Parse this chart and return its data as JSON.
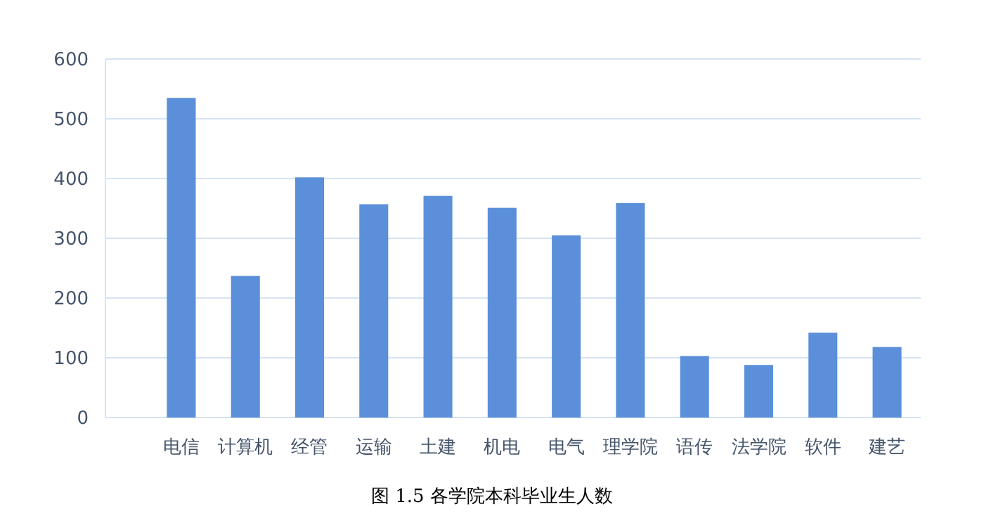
{
  "chart_data": {
    "type": "bar",
    "categories": [
      "电信",
      "计算机",
      "经管",
      "运输",
      "土建",
      "机电",
      "电气",
      "理学院",
      "语传",
      "法学院",
      "软件",
      "建艺"
    ],
    "values": [
      535,
      237,
      402,
      357,
      371,
      351,
      305,
      359,
      103,
      88,
      142,
      118
    ],
    "color": "#5b8fd9",
    "ylim": [
      0,
      600
    ],
    "yticks": [
      0,
      100,
      200,
      300,
      400,
      500,
      600
    ],
    "grid": "y",
    "annotations": [
      "图 1.5 各学院本科毕业生人数"
    ]
  }
}
